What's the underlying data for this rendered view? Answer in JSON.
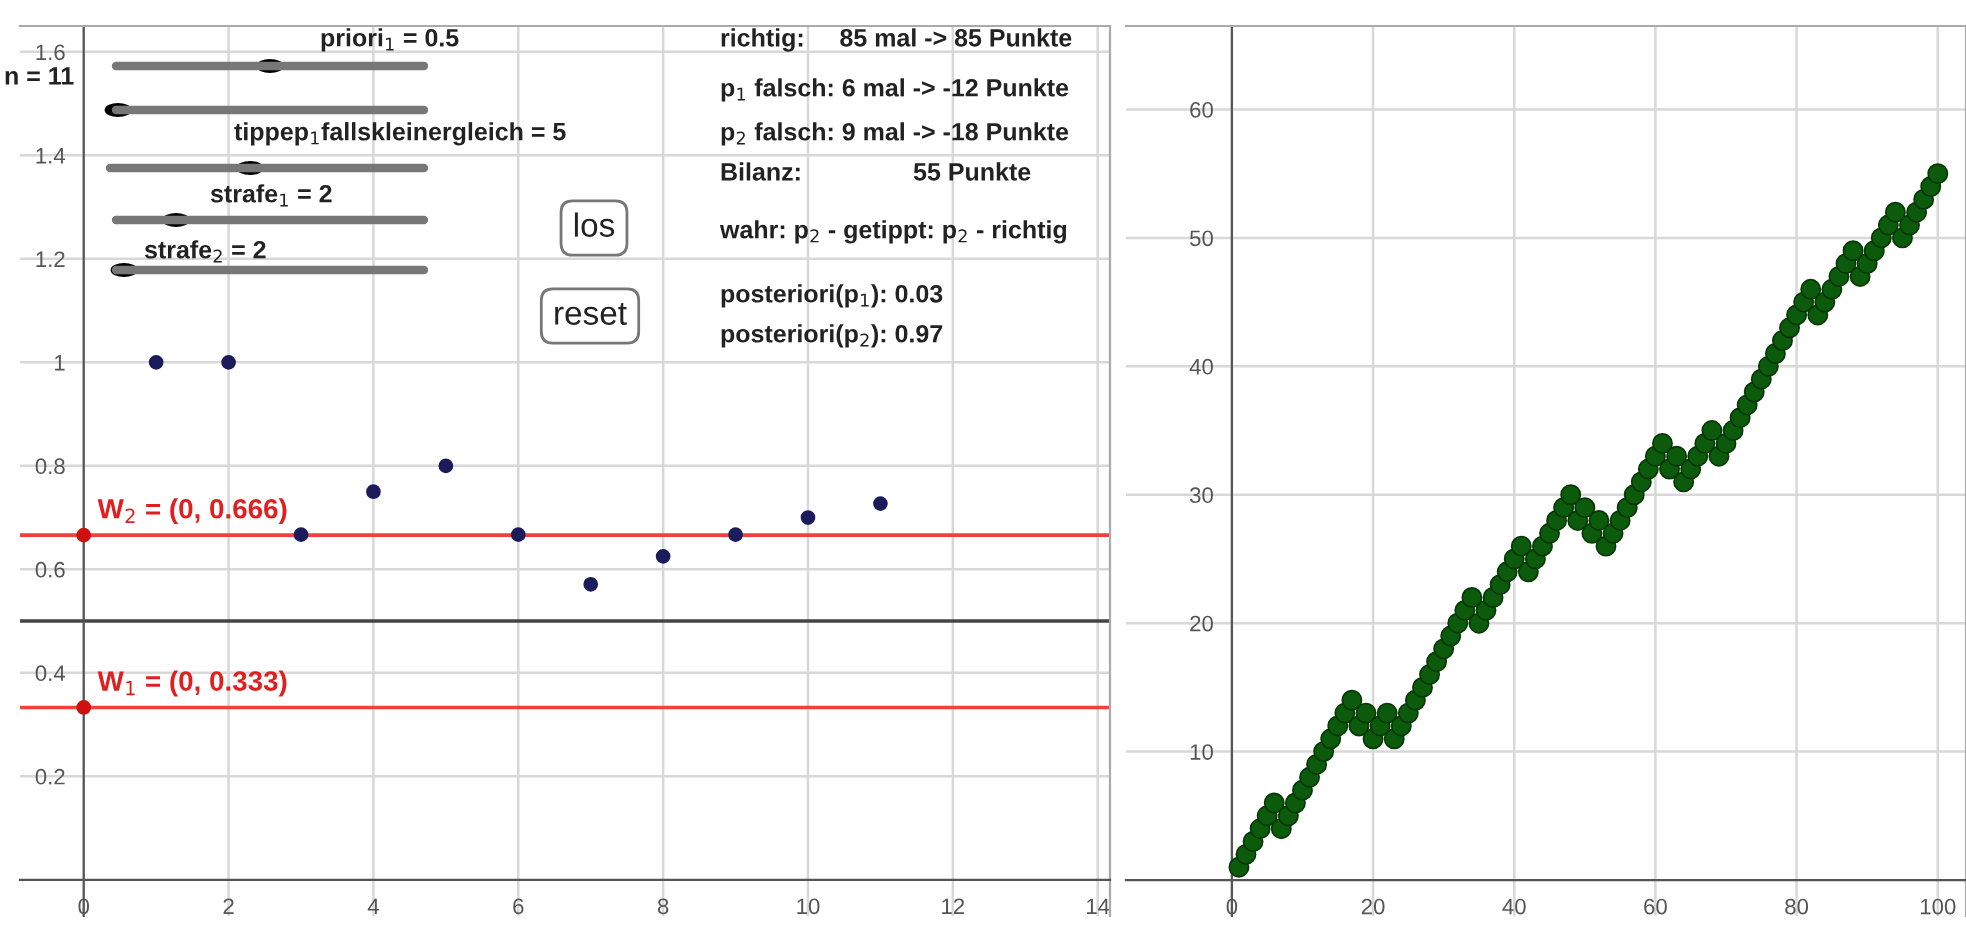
{
  "chart_data": [
    {
      "type": "scatter",
      "xlim": [
        -0.88,
        14.17
      ],
      "ylim": [
        -0.07,
        1.65
      ],
      "xticks": [
        0,
        2,
        4,
        6,
        8,
        10,
        12,
        14
      ],
      "yticks": [
        0.2,
        0.4,
        0.6,
        0.8,
        1,
        1.2,
        1.4,
        1.6
      ],
      "grid": true,
      "marker": "circle",
      "legend": false,
      "series": [
        {
          "x": [
            1,
            2,
            3,
            4,
            5,
            6,
            7,
            8,
            9,
            10,
            11
          ],
          "values": [
            1,
            1,
            0.667,
            0.75,
            0.8,
            0.667,
            0.571,
            0.625,
            0.667,
            0.7,
            0.727
          ],
          "color": "#1c1c5c"
        },
        {
          "x": [
            0,
            0
          ],
          "values": [
            0.666,
            0.333
          ],
          "color": "#d01010"
        }
      ],
      "ref_lines": [
        {
          "axis": "y",
          "value": 0.666,
          "color": "#f04040"
        },
        {
          "axis": "y",
          "value": 0.333,
          "color": "#f04040"
        },
        {
          "axis": "y",
          "value": 0.5,
          "color": "#444444"
        }
      ],
      "annotations": [
        {
          "text": "W$_{2}$ = (0, 0.666)",
          "x": 0,
          "y": 0.666
        },
        {
          "text": "W$_{1}$ = (0, 0.333)",
          "x": 0,
          "y": 0.333
        },
        "priori$_{1}$ = 0.5",
        "n = 11",
        "tippep$_{1}$fallskleinergleich = 5",
        "strafe$_{1}$ = 2",
        "strafe$_{2}$ = 2",
        "los",
        "reset",
        "richtig:     85 mal -> 85 Punkte",
        "p$_{1}$ falsch: 6 mal -> -12 Punkte",
        "p$_{2}$ falsch: 9 mal -> -18 Punkte",
        "Bilanz:                55 Punkte",
        "wahr: p$_{2}$ - getippt: p$_{2}$ - richtig",
        "posteriori(p$_{1}$): 0.03",
        "posteriori(p$_{2}$): 0.97"
      ]
    },
    {
      "type": "scatter",
      "xlim": [
        -15,
        104
      ],
      "ylim": [
        -2.8,
        66.5
      ],
      "xticks": [
        0,
        20,
        40,
        60,
        80,
        100
      ],
      "yticks": [
        10,
        20,
        30,
        40,
        50,
        60
      ],
      "grid": true,
      "marker": "circle",
      "legend": false,
      "series": [
        {
          "x": [
            1,
            2,
            3,
            4,
            5,
            6,
            7,
            8,
            9,
            10,
            11,
            12,
            13,
            14,
            15,
            16,
            17,
            18,
            19,
            20,
            21,
            22,
            23,
            24,
            25,
            26,
            27,
            28,
            29,
            30,
            31,
            32,
            33,
            34,
            35,
            36,
            37,
            38,
            39,
            40,
            41,
            42,
            43,
            44,
            45,
            46,
            47,
            48,
            49,
            50,
            51,
            52,
            53,
            54,
            55,
            56,
            57,
            58,
            59,
            60,
            61,
            62,
            63,
            64,
            65,
            66,
            67,
            68,
            69,
            70,
            71,
            72,
            73,
            74,
            75,
            76,
            77,
            78,
            79,
            80,
            81,
            82,
            83,
            84,
            85,
            86,
            87,
            88,
            89,
            90,
            91,
            92,
            93,
            94,
            95,
            96,
            97,
            98,
            99,
            100
          ],
          "values": [
            1,
            2,
            3,
            4,
            5,
            6,
            4,
            5,
            6,
            7,
            8,
            9,
            10,
            11,
            12,
            13,
            14,
            12,
            13,
            11,
            12,
            13,
            11,
            12,
            13,
            14,
            15,
            16,
            17,
            18,
            19,
            20,
            21,
            22,
            20,
            21,
            22,
            23,
            24,
            25,
            26,
            24,
            25,
            26,
            27,
            28,
            29,
            30,
            28,
            29,
            27,
            28,
            26,
            27,
            28,
            29,
            30,
            31,
            32,
            33,
            34,
            32,
            33,
            31,
            32,
            33,
            34,
            35,
            33,
            34,
            35,
            36,
            37,
            38,
            39,
            40,
            41,
            42,
            43,
            44,
            45,
            46,
            44,
            45,
            46,
            47,
            48,
            49,
            47,
            48,
            49,
            50,
            51,
            52,
            50,
            51,
            52,
            53,
            54,
            55
          ],
          "color": "#0c5a0c"
        }
      ]
    }
  ]
}
